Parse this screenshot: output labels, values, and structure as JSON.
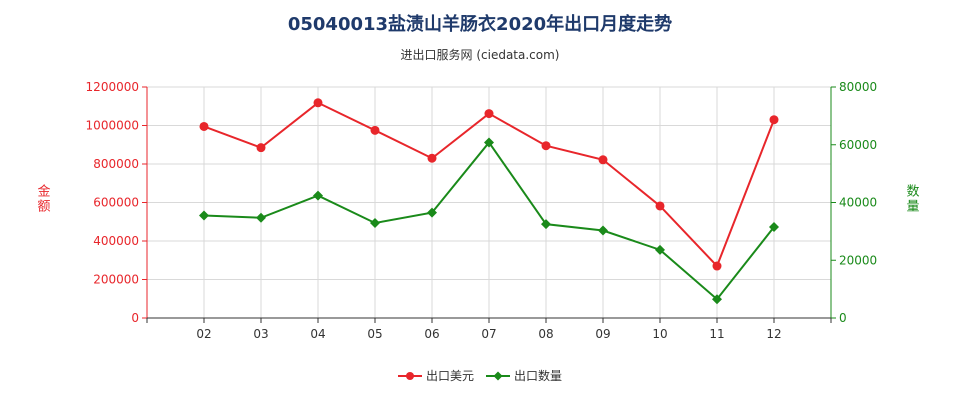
{
  "chart_data": {
    "type": "line",
    "title": "05040013盐渍山羊肠衣2020年出口月度走势",
    "subtitle": "进出口服务网 (ciedata.com)",
    "categories": [
      "02",
      "03",
      "04",
      "05",
      "06",
      "07",
      "08",
      "09",
      "10",
      "11",
      "12"
    ],
    "y_left": {
      "label": "金额",
      "range": [
        0,
        1200000
      ],
      "ticks": [
        "0",
        "200000",
        "400000",
        "600000",
        "800000",
        "1000000",
        "1200000"
      ],
      "color": "#e8262b"
    },
    "y_right": {
      "label": "数量",
      "range": [
        0,
        80000
      ],
      "ticks": [
        "0",
        "20000",
        "40000",
        "60000",
        "80000"
      ],
      "color": "#1a8a1a"
    },
    "series": [
      {
        "name": "出口美元",
        "axis": "left",
        "color": "#e8262b",
        "marker": "circle",
        "values": [
          995000,
          885000,
          1118000,
          975000,
          830000,
          1062000,
          895000,
          822000,
          582000,
          270000,
          1030000
        ]
      },
      {
        "name": "出口数量",
        "axis": "right",
        "color": "#1a8a1a",
        "marker": "diamond",
        "values": [
          35500,
          34700,
          42400,
          32900,
          36500,
          60800,
          32500,
          30300,
          23600,
          6500,
          31500
        ]
      }
    ],
    "grid": true,
    "legend_position": "bottom"
  }
}
